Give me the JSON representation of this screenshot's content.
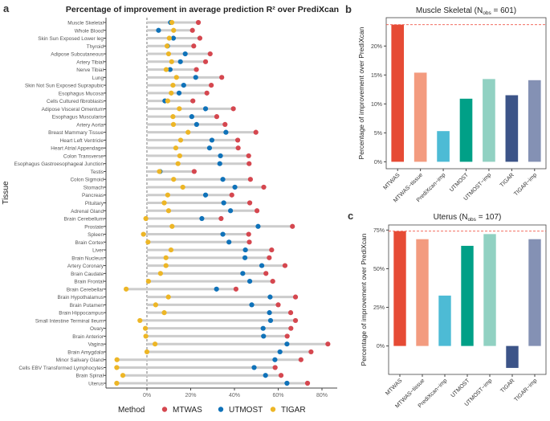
{
  "chart_data": [
    {
      "panel": "a",
      "type": "scatter",
      "title": "Percentage of improvement in average prediction R² over PrediXcan",
      "ylabel": "Tissue",
      "xlabel": "",
      "xlim": [
        -18,
        87
      ],
      "xticks": [
        "0%",
        "20%",
        "40%",
        "60%",
        "80%"
      ],
      "xtick_values": [
        0,
        20,
        40,
        60,
        80
      ],
      "legend": {
        "title": "Method",
        "placement": "bottom"
      },
      "grid": false,
      "categories": [
        "Muscle Skeletal",
        "Whole Blood",
        "Skin Sun Exposed Lower leg",
        "Thyroid",
        "Adipose Subcutaneous",
        "Artery Tibial",
        "Nerve Tibial",
        "Lung",
        "Skin Not Sun Exposed Suprapubic",
        "Esophagus Mucosa",
        "Cells Cultured fibroblasts",
        "Adipose Visceral Omentum",
        "Esophagus Muscularis",
        "Artery Aorta",
        "Breast Mammary Tissue",
        "Heart Left Ventricle",
        "Heart Atrial Appendage",
        "Colon Transverse",
        "Esophagus Gastroesophageal Junction",
        "Testis",
        "Colon Sigmoid",
        "Stomach",
        "Pancreas",
        "Pituitary",
        "Adrenal Gland",
        "Brain Cerebellum",
        "Prostate",
        "Spleen",
        "Brain Cortex",
        "Liver",
        "Brain Nucleus",
        "Artery Coronary",
        "Brain Caudate",
        "Brain Frontal",
        "Brain Cerebellar",
        "Brain Hypothalamus",
        "Brain Putamen",
        "Brain Hippocampus",
        "Small Intestine Terminal Ileum",
        "Ovary",
        "Brain Anterior",
        "Vagina",
        "Brain Amygdala",
        "Minor Salivary Gland",
        "Cells EBV Transformed Lymphocytes",
        "Brain Spinal",
        "Uterus"
      ],
      "series": [
        {
          "name": "MTWAS",
          "color": "#d5474f",
          "values": [
            23.5,
            20.8,
            24.2,
            21.4,
            28.9,
            26.8,
            22.6,
            34.2,
            29.4,
            27.4,
            21.0,
            39.5,
            31.9,
            35.7,
            49.8,
            41.5,
            41.7,
            46.5,
            46.7,
            21.6,
            47.3,
            53.4,
            38.8,
            47.0,
            50.3,
            33.9,
            66.5,
            46.5,
            46.8,
            57.0,
            55.9,
            63.1,
            54.4,
            57.5,
            40.7,
            67.9,
            60.0,
            65.7,
            67.9,
            65.8,
            64.1,
            82.7,
            75.0,
            70.4,
            58.6,
            61.3,
            73.4
          ]
        },
        {
          "name": "UTMOST",
          "color": "#0f72b9",
          "values": [
            10.8,
            5.3,
            12.1,
            9.4,
            17.5,
            15.3,
            10.6,
            22.3,
            16.8,
            14.7,
            8.2,
            26.8,
            20.5,
            22.7,
            36.1,
            29.7,
            28.6,
            33.6,
            33.3,
            6.0,
            34.7,
            40.2,
            26.8,
            35.1,
            38.2,
            25.1,
            50.8,
            34.7,
            37.5,
            45.0,
            44.8,
            52.5,
            43.8,
            47.0,
            31.8,
            56.3,
            47.9,
            56.0,
            56.5,
            53.1,
            53.3,
            64.0,
            60.8,
            58.5,
            49.0,
            54.2,
            64.0
          ]
        },
        {
          "name": "TIGAR",
          "color": "#edb626",
          "values": [
            11.4,
            12.2,
            10.2,
            9.2,
            9.9,
            11.3,
            8.8,
            13.5,
            11.9,
            11.1,
            9.5,
            14.8,
            11.9,
            12.1,
            18.8,
            15.4,
            13.2,
            15.0,
            14.2,
            5.7,
            12.2,
            16.4,
            9.5,
            7.9,
            9.9,
            -0.5,
            11.5,
            -1.6,
            0.5,
            11.0,
            8.7,
            8.7,
            6.2,
            0.7,
            -9.5,
            9.8,
            4.0,
            7.9,
            -3.2,
            -0.7,
            -0.5,
            3.7,
            0.0,
            -13.7,
            -13.8,
            -11.0,
            -13.8
          ]
        }
      ]
    },
    {
      "panel": "b",
      "type": "bar",
      "title_main": "Muscle Skeletal (N",
      "title_sub": "obs",
      "title_end": " = 601)",
      "ylabel": "Percentage of improvement over PrediXcan",
      "ylim": [
        -1.2,
        24.9
      ],
      "yticks": [
        "0%",
        "5%",
        "10%",
        "15%",
        "20%"
      ],
      "ytick_values": [
        0,
        5,
        10,
        15,
        20
      ],
      "reference_line": 23.7,
      "categories": [
        "MTWAS",
        "MTWAS−tissue",
        "PrediXcan−imp",
        "UTMOST",
        "UTMOST−imp",
        "TIGAR",
        "TIGAR−imp"
      ],
      "values": [
        23.7,
        15.4,
        5.3,
        10.9,
        14.3,
        11.5,
        14.1
      ],
      "colors": [
        "#e64b35",
        "#f39b7f",
        "#4dbbd5",
        "#00a087",
        "#91d1c2",
        "#3c5488",
        "#8491b4"
      ]
    },
    {
      "panel": "c",
      "type": "bar",
      "title_main": "Uterus (N",
      "title_sub": "obs",
      "title_end": " = 107)",
      "ylabel": "Percentage of improvement over PrediXcan",
      "ylim": [
        -18.4,
        78.3
      ],
      "yticks": [
        "0%",
        "25%",
        "50%",
        "75%"
      ],
      "ytick_values": [
        0,
        25,
        50,
        75
      ],
      "reference_line": 74.3,
      "categories": [
        "MTWAS",
        "MTWAS−tissue",
        "PrediXcan−imp",
        "UTMOST",
        "UTMOST−imp",
        "TIGAR",
        "TIGAR−imp"
      ],
      "values": [
        74.3,
        69.1,
        32.6,
        64.8,
        72.4,
        -14.2,
        69.1
      ],
      "colors": [
        "#e64b35",
        "#f39b7f",
        "#4dbbd5",
        "#00a087",
        "#91d1c2",
        "#3c5488",
        "#8491b4"
      ]
    }
  ]
}
